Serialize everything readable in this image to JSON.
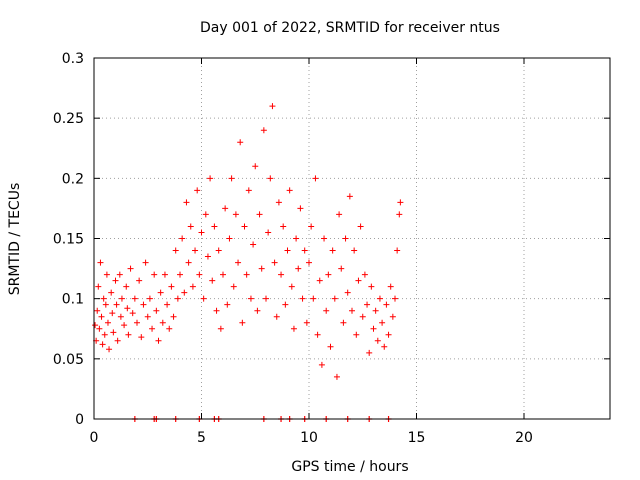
{
  "chart_data": {
    "type": "scatter",
    "title": "Day 001 of 2022, SRMTID for receiver ntus",
    "xlabel": "GPS time / hours",
    "ylabel": "SRMTID / TECUs",
    "xlim": [
      0,
      24
    ],
    "ylim": [
      0,
      0.3
    ],
    "x_ticks": [
      0,
      5,
      10,
      15,
      20
    ],
    "y_ticks": [
      0,
      0.05,
      0.1,
      0.15,
      0.2,
      0.25,
      0.3
    ],
    "x_tick_labels": [
      "0",
      "5",
      "10",
      "15",
      "20"
    ],
    "y_tick_labels": [
      "0",
      "0.05",
      "0.1",
      "0.15",
      "0.2",
      "0.25",
      "0.3"
    ],
    "grid": true,
    "marker": "+",
    "marker_color": "#ff0000",
    "series": [
      {
        "name": "",
        "points": [
          [
            0.05,
            0.078
          ],
          [
            0.1,
            0.065
          ],
          [
            0.15,
            0.09
          ],
          [
            0.2,
            0.11
          ],
          [
            0.25,
            0.075
          ],
          [
            0.3,
            0.13
          ],
          [
            0.35,
            0.085
          ],
          [
            0.4,
            0.062
          ],
          [
            0.45,
            0.1
          ],
          [
            0.5,
            0.07
          ],
          [
            0.55,
            0.095
          ],
          [
            0.6,
            0.12
          ],
          [
            0.65,
            0.08
          ],
          [
            0.7,
            0.058
          ],
          [
            0.8,
            0.105
          ],
          [
            0.85,
            0.088
          ],
          [
            0.9,
            0.072
          ],
          [
            1.0,
            0.115
          ],
          [
            1.05,
            0.095
          ],
          [
            1.1,
            0.065
          ],
          [
            1.2,
            0.12
          ],
          [
            1.25,
            0.085
          ],
          [
            1.3,
            0.1
          ],
          [
            1.4,
            0.078
          ],
          [
            1.5,
            0.11
          ],
          [
            1.55,
            0.092
          ],
          [
            1.6,
            0.07
          ],
          [
            1.7,
            0.125
          ],
          [
            1.8,
            0.088
          ],
          [
            1.9,
            0.1
          ],
          [
            2.0,
            0.08
          ],
          [
            2.1,
            0.115
          ],
          [
            2.2,
            0.068
          ],
          [
            2.3,
            0.095
          ],
          [
            2.4,
            0.13
          ],
          [
            2.5,
            0.085
          ],
          [
            2.6,
            0.1
          ],
          [
            2.7,
            0.075
          ],
          [
            2.8,
            0.12
          ],
          [
            2.9,
            0.09
          ],
          [
            3.0,
            0.065
          ],
          [
            3.1,
            0.105
          ],
          [
            3.2,
            0.08
          ],
          [
            3.3,
            0.12
          ],
          [
            3.4,
            0.095
          ],
          [
            3.5,
            0.075
          ],
          [
            3.6,
            0.11
          ],
          [
            3.7,
            0.085
          ],
          [
            3.8,
            0.14
          ],
          [
            3.9,
            0.1
          ],
          [
            4.0,
            0.12
          ],
          [
            4.1,
            0.15
          ],
          [
            4.2,
            0.105
          ],
          [
            4.3,
            0.18
          ],
          [
            4.4,
            0.13
          ],
          [
            4.5,
            0.16
          ],
          [
            4.6,
            0.11
          ],
          [
            4.7,
            0.14
          ],
          [
            4.8,
            0.19
          ],
          [
            4.9,
            0.12
          ],
          [
            5.0,
            0.155
          ],
          [
            5.1,
            0.1
          ],
          [
            5.2,
            0.17
          ],
          [
            5.3,
            0.135
          ],
          [
            5.4,
            0.2
          ],
          [
            5.5,
            0.115
          ],
          [
            5.6,
            0.16
          ],
          [
            5.7,
            0.09
          ],
          [
            5.8,
            0.14
          ],
          [
            5.9,
            0.075
          ],
          [
            6.0,
            0.12
          ],
          [
            6.1,
            0.175
          ],
          [
            6.2,
            0.095
          ],
          [
            6.3,
            0.15
          ],
          [
            6.4,
            0.2
          ],
          [
            6.5,
            0.11
          ],
          [
            6.6,
            0.17
          ],
          [
            6.7,
            0.13
          ],
          [
            6.8,
            0.23
          ],
          [
            6.9,
            0.08
          ],
          [
            7.0,
            0.16
          ],
          [
            7.1,
            0.12
          ],
          [
            7.2,
            0.19
          ],
          [
            7.3,
            0.1
          ],
          [
            7.4,
            0.145
          ],
          [
            7.5,
            0.21
          ],
          [
            7.6,
            0.09
          ],
          [
            7.7,
            0.17
          ],
          [
            7.8,
            0.125
          ],
          [
            7.9,
            0.24
          ],
          [
            8.0,
            0.1
          ],
          [
            8.1,
            0.155
          ],
          [
            8.2,
            0.2
          ],
          [
            8.3,
            0.26
          ],
          [
            8.4,
            0.13
          ],
          [
            8.5,
            0.085
          ],
          [
            8.6,
            0.18
          ],
          [
            8.7,
            0.12
          ],
          [
            8.8,
            0.16
          ],
          [
            8.9,
            0.095
          ],
          [
            9.0,
            0.14
          ],
          [
            9.1,
            0.19
          ],
          [
            9.2,
            0.11
          ],
          [
            9.3,
            0.075
          ],
          [
            9.4,
            0.15
          ],
          [
            9.5,
            0.125
          ],
          [
            9.6,
            0.175
          ],
          [
            9.7,
            0.1
          ],
          [
            9.8,
            0.14
          ],
          [
            9.9,
            0.08
          ],
          [
            10.0,
            0.13
          ],
          [
            10.1,
            0.16
          ],
          [
            10.2,
            0.1
          ],
          [
            10.3,
            0.2
          ],
          [
            10.4,
            0.07
          ],
          [
            10.5,
            0.115
          ],
          [
            10.6,
            0.045
          ],
          [
            10.7,
            0.15
          ],
          [
            10.8,
            0.09
          ],
          [
            10.9,
            0.12
          ],
          [
            11.0,
            0.06
          ],
          [
            11.1,
            0.14
          ],
          [
            11.2,
            0.1
          ],
          [
            11.3,
            0.035
          ],
          [
            11.4,
            0.17
          ],
          [
            11.5,
            0.125
          ],
          [
            11.6,
            0.08
          ],
          [
            11.7,
            0.15
          ],
          [
            11.8,
            0.105
          ],
          [
            11.9,
            0.185
          ],
          [
            12.0,
            0.09
          ],
          [
            12.1,
            0.14
          ],
          [
            12.2,
            0.07
          ],
          [
            12.3,
            0.115
          ],
          [
            12.4,
            0.16
          ],
          [
            12.5,
            0.085
          ],
          [
            12.6,
            0.12
          ],
          [
            12.7,
            0.095
          ],
          [
            12.8,
            0.055
          ],
          [
            12.9,
            0.11
          ],
          [
            13.0,
            0.075
          ],
          [
            13.1,
            0.09
          ],
          [
            13.2,
            0.065
          ],
          [
            13.3,
            0.1
          ],
          [
            13.4,
            0.08
          ],
          [
            13.5,
            0.06
          ],
          [
            13.6,
            0.095
          ],
          [
            13.7,
            0.07
          ],
          [
            13.8,
            0.11
          ],
          [
            13.9,
            0.085
          ],
          [
            14.0,
            0.1
          ],
          [
            14.1,
            0.14
          ],
          [
            14.2,
            0.17
          ],
          [
            14.25,
            0.18
          ]
        ]
      }
    ],
    "baseline_points_x": [
      1.9,
      2.8,
      2.9,
      3.8,
      4.9,
      5.6,
      5.8,
      7.9,
      8.7,
      9.1,
      9.8,
      10.8,
      11.8,
      12.8,
      13.7
    ]
  }
}
